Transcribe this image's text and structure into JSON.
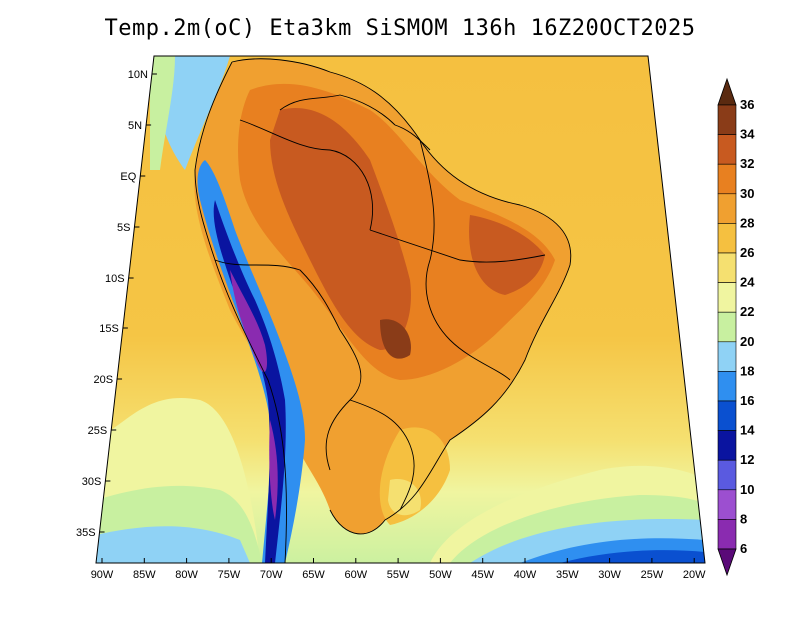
{
  "title": "Temp.2m(oC) Eta3km SiSMOM 136h 16Z20OCT2025",
  "map": {
    "lat_labels": [
      "10N",
      "5N",
      "EQ",
      "5S",
      "10S",
      "15S",
      "20S",
      "25S",
      "30S",
      "35S"
    ],
    "lon_labels": [
      "90W",
      "85W",
      "80W",
      "75W",
      "70W",
      "65W",
      "60W",
      "55W",
      "50W",
      "45W",
      "40W",
      "35W",
      "30W",
      "25W",
      "20W"
    ],
    "lat_range": [
      -38,
      11
    ],
    "lon_range": [
      -91,
      -19
    ]
  },
  "colorbar": {
    "labels": [
      "6",
      "8",
      "10",
      "12",
      "14",
      "16",
      "18",
      "20",
      "22",
      "24",
      "26",
      "28",
      "30",
      "32",
      "34",
      "36"
    ],
    "colors": [
      "#5a0a78",
      "#8a2bb0",
      "#9c4fd0",
      "#5a5ae0",
      "#0a14a0",
      "#0a50d0",
      "#2f8ff0",
      "#8fd2f5",
      "#c8f0a0",
      "#f0f5a0",
      "#f5e070",
      "#f5c040",
      "#f0a030",
      "#e88020",
      "#c85a20",
      "#8a3c18",
      "#5a2a10"
    ]
  }
}
